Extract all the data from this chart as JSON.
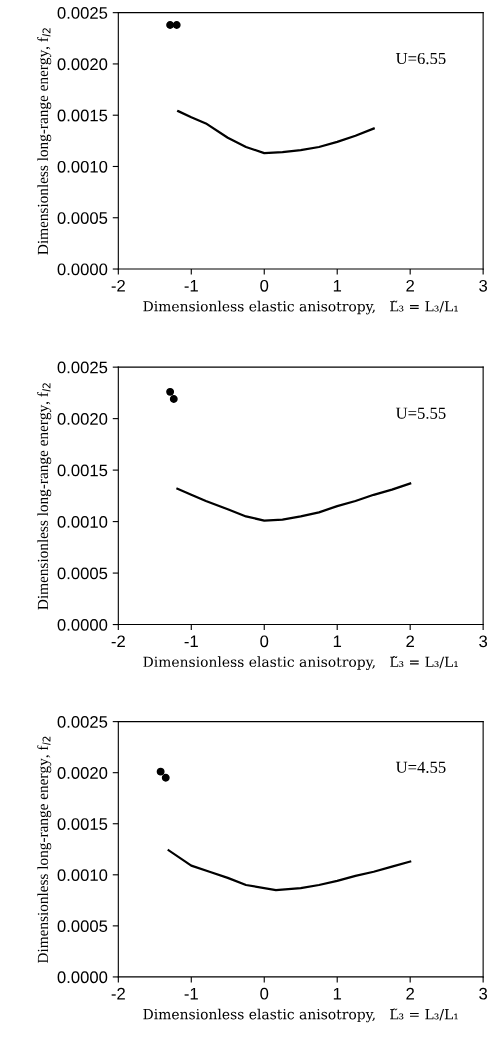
{
  "chart_data": [
    {
      "type": "line",
      "xlabel": "Dimensionless elastic anisotropy,   L̃₃ = L₃/L₁",
      "ylabel": "Dimensionless long-range energy, f$_{l2}$",
      "annotations": [
        "U=6.55"
      ],
      "xlim": [
        -2,
        3
      ],
      "ylim": [
        0,
        0.0025
      ],
      "xticks": [
        -2,
        -1,
        0,
        1,
        2,
        3
      ],
      "yticks": [
        {
          "value": 0,
          "label": "0.0000"
        },
        {
          "value": 0.0005,
          "label": "0.0005"
        },
        {
          "value": 0.001,
          "label": "0.0010"
        },
        {
          "value": 0.0015,
          "label": "0.0015"
        },
        {
          "value": 0.002,
          "label": "0.0020"
        },
        {
          "value": 0.0025,
          "label": "0.0025"
        }
      ],
      "grid": false,
      "series": [
        {
          "color": "#000000",
          "marker": "none",
          "line_style": "solid",
          "x": [
            -1.18,
            -1.0,
            -0.8,
            -0.5,
            -0.25,
            0.0,
            0.25,
            0.5,
            0.75,
            1.0,
            1.25,
            1.5
          ],
          "values": [
            0.00154,
            0.00148,
            0.00142,
            0.00128,
            0.00119,
            0.00113,
            0.00114,
            0.00116,
            0.00119,
            0.00124,
            0.0013,
            0.00137
          ]
        },
        {
          "type": "scatter",
          "color": "#000000",
          "marker": "circle",
          "x": [
            -1.29,
            -1.2
          ],
          "values": [
            0.00238,
            0.00238
          ]
        }
      ]
    },
    {
      "type": "line",
      "xlabel": "Dimensionless elastic anisotropy,   L̃₃ = L₃/L₁",
      "ylabel": "Dimensionless long-range energy, f$_{l2}$",
      "annotations": [
        "U=5.55"
      ],
      "xlim": [
        -2,
        3
      ],
      "ylim": [
        0,
        0.0025
      ],
      "xticks": [
        -2,
        -1,
        0,
        1,
        2,
        3
      ],
      "yticks": [
        {
          "value": 0,
          "label": "0.0000"
        },
        {
          "value": 0.0005,
          "label": "0.0005"
        },
        {
          "value": 0.001,
          "label": "0.0010"
        },
        {
          "value": 0.0015,
          "label": "0.0015"
        },
        {
          "value": 0.002,
          "label": "0.0020"
        },
        {
          "value": 0.0025,
          "label": "0.0025"
        }
      ],
      "grid": false,
      "series": [
        {
          "color": "#000000",
          "marker": "none",
          "line_style": "solid",
          "x": [
            -1.19,
            -1.0,
            -0.8,
            -0.5,
            -0.25,
            0.0,
            0.25,
            0.5,
            0.75,
            1.0,
            1.25,
            1.5,
            1.75,
            2.0
          ],
          "values": [
            0.00132,
            0.00126,
            0.0012,
            0.00112,
            0.00105,
            0.00101,
            0.00102,
            0.00105,
            0.00109,
            0.00115,
            0.0012,
            0.00126,
            0.00131,
            0.00137
          ]
        },
        {
          "type": "scatter",
          "color": "#000000",
          "marker": "circle",
          "x": [
            -1.29,
            -1.24
          ],
          "values": [
            0.00226,
            0.00219
          ]
        }
      ]
    },
    {
      "type": "line",
      "xlabel": "Dimensionless elastic anisotropy,   L̃₃ = L₃/L₁",
      "ylabel": "Dimensionless long-range energy, f$_{l2}$",
      "annotations": [
        "U=4.55"
      ],
      "xlim": [
        -2,
        3
      ],
      "ylim": [
        0,
        0.0025
      ],
      "xticks": [
        -2,
        -1,
        0,
        1,
        2,
        3
      ],
      "yticks": [
        {
          "value": 0,
          "label": "0.0000"
        },
        {
          "value": 0.0005,
          "label": "0.0005"
        },
        {
          "value": 0.001,
          "label": "0.0010"
        },
        {
          "value": 0.0015,
          "label": "0.0015"
        },
        {
          "value": 0.002,
          "label": "0.0020"
        },
        {
          "value": 0.0025,
          "label": "0.0025"
        }
      ],
      "grid": false,
      "series": [
        {
          "color": "#000000",
          "marker": "none",
          "line_style": "solid",
          "x": [
            -1.31,
            -1.0,
            -0.75,
            -0.5,
            -0.25,
            0.16,
            0.5,
            0.75,
            1.0,
            1.25,
            1.5,
            1.75,
            2.0
          ],
          "values": [
            0.00124,
            0.00109,
            0.00103,
            0.00097,
            0.0009,
            0.00085,
            0.00087,
            0.0009,
            0.00094,
            0.00099,
            0.00103,
            0.00108,
            0.00113
          ]
        },
        {
          "type": "scatter",
          "color": "#000000",
          "marker": "circle",
          "x": [
            -1.42,
            -1.35
          ],
          "values": [
            0.00201,
            0.00195
          ]
        }
      ]
    }
  ]
}
